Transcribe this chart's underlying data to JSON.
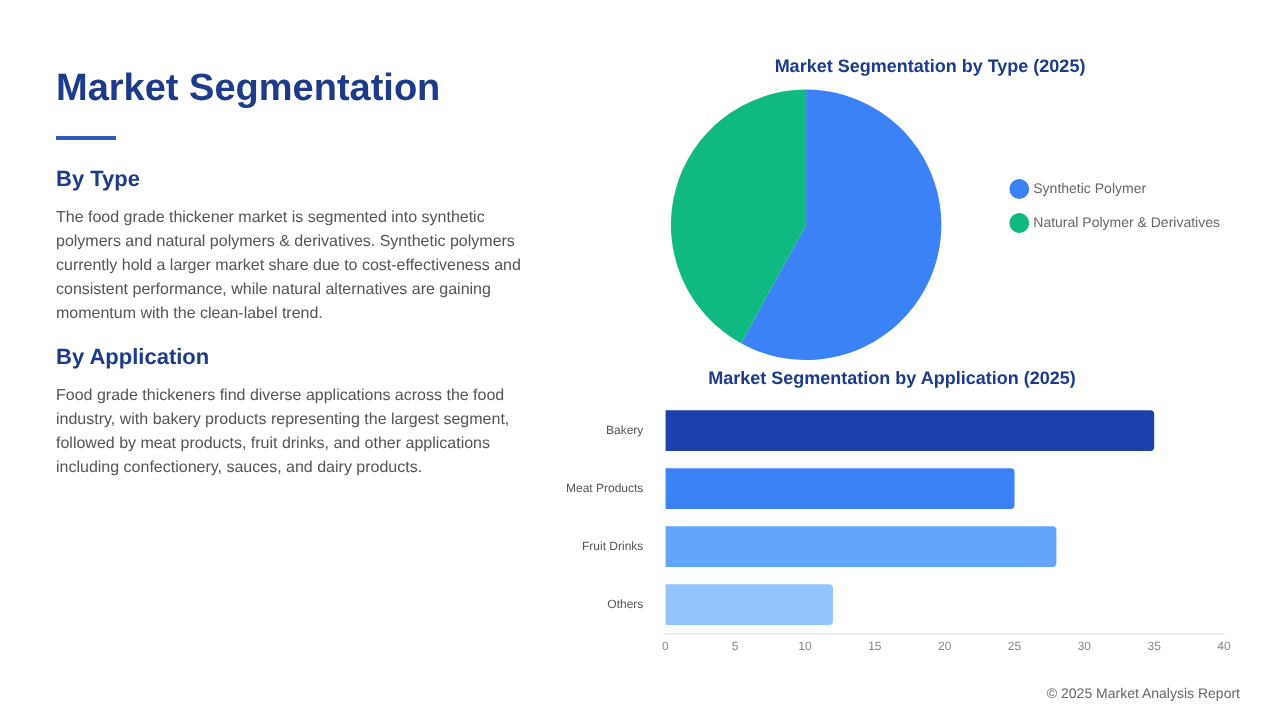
{
  "chart_data": [
    {
      "type": "other",
      "title": "Market Segmentation",
      "annotations": [
        "By Type",
        "The food grade thickener market is segmented into synthetic polymers and natural polymers & derivatives. Synthetic polymers currently hold a larger market share due to cost-effectiveness and consistent performance, while natural alternatives are gaining momentum with the clean-label trend.",
        "By Application",
        "Food grade thickeners find diverse applications across the food industry, with bakery products representing the largest segment, followed by meat products, fruit drinks, and other applications including confectionery, sauces, and dairy products."
      ]
    },
    {
      "type": "pie",
      "title": "Market Segmentation by Type (2025)",
      "categories": [
        "Synthetic Polymer",
        "Natural Polymer & Derivatives"
      ],
      "values": [
        58,
        42
      ],
      "colors": [
        "#3b82f6",
        "#10b981"
      ],
      "legend": "right"
    },
    {
      "type": "bar",
      "orientation": "horizontal",
      "title": "Market Segmentation by Application (2025)",
      "categories": [
        "Bakery",
        "Meat Products",
        "Fruit Drinks",
        "Others"
      ],
      "values": [
        35,
        25,
        28,
        12
      ],
      "colors": [
        "#1e40af",
        "#3b82f6",
        "#60a5fa",
        "#93c5fd"
      ],
      "xlim": [
        0,
        40
      ],
      "xticks": [
        0,
        5,
        10,
        15,
        20,
        25,
        30,
        35,
        40
      ],
      "grid": false,
      "legend": false,
      "annotations": [
        "© 2025 Market Analysis Report"
      ]
    }
  ]
}
